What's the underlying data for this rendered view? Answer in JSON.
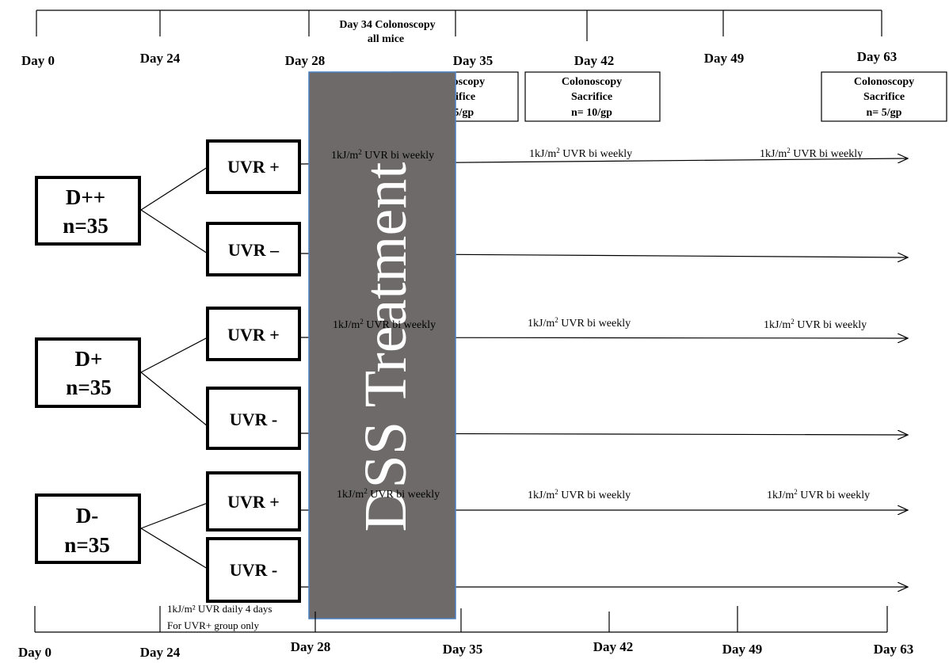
{
  "timeline_top": {
    "ticks": [
      "Day 0",
      "Day 24",
      "Day 28",
      "Day 35",
      "Day 42",
      "Day 49",
      "Day 63"
    ],
    "note_line1": "Day 34 Colonoscopy",
    "note_line2": "all mice"
  },
  "timeline_bottom": {
    "ticks": [
      "Day 0",
      "Day 24",
      "Day 28",
      "Day 35",
      "Day 42",
      "Day 49",
      "Day 63"
    ],
    "note_line1": "1kJ/m² UVR daily 4 days",
    "note_line2": "For UVR+ group only"
  },
  "sacrifice_boxes": [
    {
      "line1": "Colonoscopy",
      "line2": "Sacrifice",
      "line3": "n=15/gp"
    },
    {
      "line1": "Colonoscopy",
      "line2": "Sacrifice",
      "line3": "n= 10/gp"
    },
    {
      "line1": "Colonoscopy",
      "line2": "Sacrifice",
      "line3": "n= 5/gp"
    }
  ],
  "dss_label": "DSS Treatment",
  "uvr_label": {
    "prefix": "1kJ/m",
    "sup": "2",
    "suffix": " UVR bi weekly"
  },
  "groups": [
    {
      "name": "D++",
      "n": "n=35",
      "arms": [
        "UVR +",
        "UVR –"
      ]
    },
    {
      "name": "D+",
      "n": "n=35",
      "arms": [
        "UVR +",
        "UVR -"
      ]
    },
    {
      "name": "D-",
      "n": "n=35",
      "arms": [
        "UVR +",
        "UVR -"
      ]
    }
  ],
  "colors": {
    "dss_fill": "#6e6a6a",
    "dss_border": "#4a7fc1",
    "line": "#000000"
  }
}
